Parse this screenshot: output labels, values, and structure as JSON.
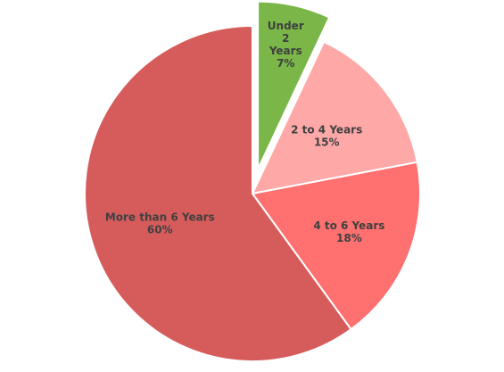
{
  "chart_data": {
    "type": "pie",
    "title": "",
    "categories": [
      "Under 2 Years",
      "2 to 4 Years",
      "4 to 6 Years",
      "More than 6 Years"
    ],
    "values": [
      7,
      15,
      18,
      60
    ],
    "unit": "%",
    "legend": "none",
    "exploded": [
      "Under 2 Years"
    ],
    "colors": [
      "#7AB648",
      "#FFA8A8",
      "#FF7070",
      "#D65C5C"
    ],
    "data_labels": [
      {
        "lines": [
          "Under",
          "2",
          "Years",
          "7%"
        ]
      },
      {
        "lines": [
          "2 to 4 Years",
          "15%"
        ]
      },
      {
        "lines": [
          "4 to 6 Years",
          "18%"
        ]
      },
      {
        "lines": [
          "More than 6 Years",
          "60%"
        ]
      }
    ]
  }
}
